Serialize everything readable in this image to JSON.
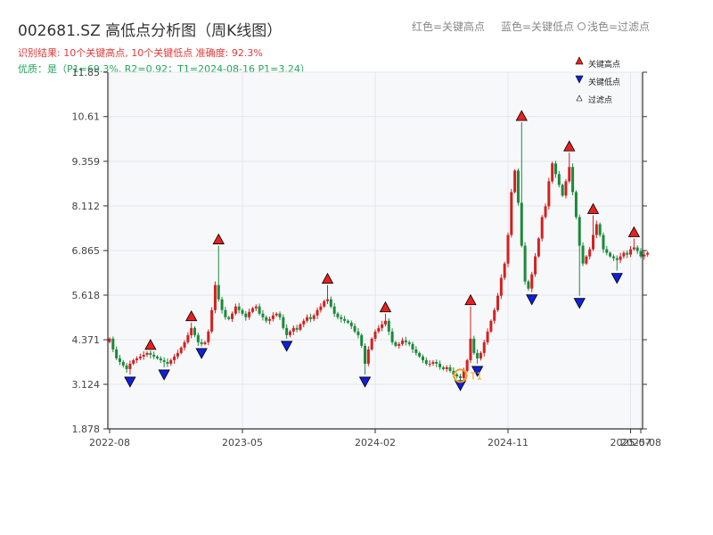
{
  "header": {
    "title": "002681.SZ 高低点分析图（周K线图）",
    "legend_red": "红色=关键高点",
    "legend_blue": "蓝色=关键低点",
    "legend_light": "浅色=过滤点",
    "result_line": "识别结果: 10个关键高点, 10个关键低点  准确度: 92.3%",
    "quality_line": "优质：是（P1=69.3%, R2=0.92；T1=2024-08-16 P1=3.24）"
  },
  "legend_box": {
    "high_label": "关键高点",
    "low_label": "关键低点",
    "filtered_label": "过滤点"
  },
  "colors": {
    "up": "#d42020",
    "down": "#1a8a3a",
    "high_marker": "#e82020",
    "low_marker": "#1020d8",
    "t1_circle": "#f0a020",
    "plot_bg": "#f7f8fa",
    "grid": "#e3e6ea"
  },
  "chart_data": {
    "type": "candlestick",
    "xlabel": "",
    "ylabel": "",
    "yticks": [
      "1.878",
      "3.124",
      "4.371",
      "5.618",
      "6.865",
      "8.112",
      "9.359",
      "10.61",
      "11.85"
    ],
    "ylim": [
      1.878,
      11.85
    ],
    "xticks": [
      {
        "label": "2022-08",
        "idx": 0
      },
      {
        "label": "2023-05",
        "idx": 39
      },
      {
        "label": "2024-02",
        "idx": 78
      },
      {
        "label": "2024-11",
        "idx": 117
      },
      {
        "label": "2025-07",
        "idx": 153
      },
      {
        "label": "2025-08",
        "idx": 156
      }
    ],
    "t1": {
      "label": "T1",
      "date": "2024-08-16",
      "price": 3.24,
      "idx": 103
    },
    "key_highs": [
      {
        "idx": 12,
        "price": 4.05
      },
      {
        "idx": 24,
        "price": 4.85
      },
      {
        "idx": 32,
        "price": 7.0
      },
      {
        "idx": 64,
        "price": 5.9
      },
      {
        "idx": 81,
        "price": 5.1
      },
      {
        "idx": 106,
        "price": 5.3
      },
      {
        "idx": 121,
        "price": 10.45
      },
      {
        "idx": 135,
        "price": 9.6
      },
      {
        "idx": 142,
        "price": 7.85
      },
      {
        "idx": 154,
        "price": 7.2
      }
    ],
    "key_lows": [
      {
        "idx": 6,
        "price": 3.4
      },
      {
        "idx": 16,
        "price": 3.6
      },
      {
        "idx": 27,
        "price": 4.2
      },
      {
        "idx": 52,
        "price": 4.4
      },
      {
        "idx": 75,
        "price": 3.4
      },
      {
        "idx": 103,
        "price": 3.3
      },
      {
        "idx": 108,
        "price": 3.7
      },
      {
        "idx": 124,
        "price": 5.7
      },
      {
        "idx": 138,
        "price": 5.6
      },
      {
        "idx": 149,
        "price": 6.3
      }
    ],
    "closes": [
      4.4,
      4.1,
      3.85,
      3.75,
      3.65,
      3.55,
      3.7,
      3.8,
      3.85,
      3.9,
      3.95,
      4.0,
      3.95,
      3.9,
      3.85,
      3.8,
      3.75,
      3.7,
      3.8,
      3.9,
      4.0,
      4.15,
      4.3,
      4.5,
      4.7,
      4.5,
      4.3,
      4.25,
      4.3,
      4.6,
      5.2,
      5.9,
      5.5,
      5.2,
      5.0,
      4.95,
      5.1,
      5.3,
      5.2,
      5.1,
      5.0,
      5.15,
      5.25,
      5.3,
      5.1,
      5.0,
      4.9,
      4.95,
      5.05,
      5.1,
      5.0,
      4.7,
      4.5,
      4.6,
      4.7,
      4.65,
      4.8,
      4.9,
      5.0,
      4.95,
      5.05,
      5.2,
      5.3,
      5.45,
      5.5,
      5.3,
      5.1,
      5.0,
      4.95,
      4.9,
      4.85,
      4.75,
      4.6,
      4.5,
      4.2,
      3.7,
      4.1,
      4.4,
      4.6,
      4.7,
      4.8,
      4.9,
      4.6,
      4.3,
      4.2,
      4.25,
      4.35,
      4.3,
      4.25,
      4.1,
      4.0,
      3.9,
      3.8,
      3.7,
      3.7,
      3.75,
      3.7,
      3.6,
      3.55,
      3.6,
      3.5,
      3.4,
      3.35,
      3.3,
      3.5,
      3.8,
      4.4,
      4.0,
      3.85,
      4.0,
      4.3,
      4.6,
      4.9,
      5.2,
      5.6,
      6.1,
      6.5,
      7.3,
      8.5,
      9.1,
      8.2,
      7.0,
      6.0,
      5.8,
      6.2,
      6.7,
      7.2,
      7.8,
      8.1,
      8.8,
      9.3,
      9.0,
      8.7,
      8.4,
      8.8,
      9.2,
      8.5,
      7.8,
      7.0,
      6.5,
      6.7,
      6.9,
      7.3,
      7.6,
      7.3,
      6.9,
      6.8,
      6.7,
      6.65,
      6.6,
      6.7,
      6.8,
      6.75,
      6.9,
      6.95,
      6.85,
      6.7,
      6.75,
      6.8
    ]
  }
}
